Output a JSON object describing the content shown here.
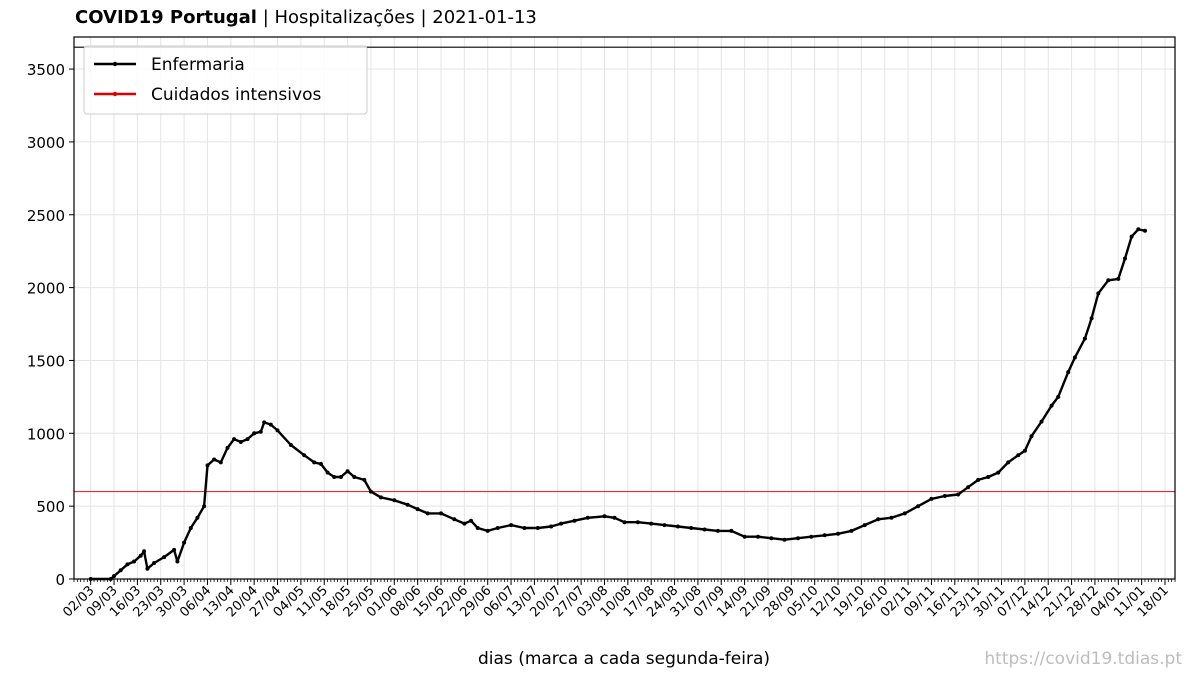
{
  "title": {
    "bold": "COVID19 Portugal",
    "rest": " | Hospitalizações | 2021-01-13"
  },
  "xlabel": "dias (marca a cada segunda-feira)",
  "source": "https://covid19.tdias.pt",
  "chart_data": {
    "type": "line",
    "title": "COVID19 Portugal | Hospitalizações | 2021-01-13",
    "xlabel": "dias (marca a cada segunda-feira)",
    "ylabel": "",
    "ylim": [
      0,
      3720
    ],
    "x_range": [
      "2020-02-26",
      "2021-01-21"
    ],
    "grid": true,
    "legend_position": "top-left",
    "yticks": [
      0,
      500,
      1000,
      1500,
      2000,
      2500,
      3000,
      3500
    ],
    "xtick_labels": [
      "02/03",
      "09/03",
      "16/03",
      "23/03",
      "30/03",
      "06/04",
      "13/04",
      "20/04",
      "27/04",
      "04/05",
      "11/05",
      "18/05",
      "25/05",
      "01/06",
      "08/06",
      "15/06",
      "22/06",
      "29/06",
      "06/07",
      "13/07",
      "20/07",
      "27/07",
      "03/08",
      "10/08",
      "17/08",
      "24/08",
      "31/08",
      "07/09",
      "14/09",
      "21/09",
      "28/09",
      "05/10",
      "12/10",
      "19/10",
      "26/10",
      "02/11",
      "09/11",
      "16/11",
      "23/11",
      "30/11",
      "07/12",
      "14/12",
      "21/12",
      "28/12",
      "04/01",
      "11/01",
      "18/01"
    ],
    "reference_lines": [
      {
        "value": 3650,
        "color": "#000000"
      },
      {
        "value": 600,
        "color": "#e03030"
      }
    ],
    "series": [
      {
        "name": "Enfermaria",
        "color": "#000000",
        "points": [
          [
            "2020-03-02",
            0
          ],
          [
            "2020-03-08",
            0
          ],
          [
            "2020-03-09",
            20
          ],
          [
            "2020-03-11",
            60
          ],
          [
            "2020-03-13",
            100
          ],
          [
            "2020-03-15",
            120
          ],
          [
            "2020-03-17",
            160
          ],
          [
            "2020-03-18",
            190
          ],
          [
            "2020-03-19",
            70
          ],
          [
            "2020-03-21",
            110
          ],
          [
            "2020-03-24",
            150
          ],
          [
            "2020-03-27",
            200
          ],
          [
            "2020-03-28",
            120
          ],
          [
            "2020-03-30",
            250
          ],
          [
            "2020-04-01",
            350
          ],
          [
            "2020-04-03",
            420
          ],
          [
            "2020-04-05",
            500
          ],
          [
            "2020-04-06",
            780
          ],
          [
            "2020-04-08",
            820
          ],
          [
            "2020-04-10",
            800
          ],
          [
            "2020-04-12",
            900
          ],
          [
            "2020-04-14",
            960
          ],
          [
            "2020-04-16",
            940
          ],
          [
            "2020-04-18",
            960
          ],
          [
            "2020-04-20",
            1000
          ],
          [
            "2020-04-22",
            1010
          ],
          [
            "2020-04-23",
            1075
          ],
          [
            "2020-04-25",
            1060
          ],
          [
            "2020-04-27",
            1020
          ],
          [
            "2020-05-01",
            920
          ],
          [
            "2020-05-05",
            850
          ],
          [
            "2020-05-08",
            800
          ],
          [
            "2020-05-10",
            790
          ],
          [
            "2020-05-12",
            730
          ],
          [
            "2020-05-14",
            700
          ],
          [
            "2020-05-16",
            700
          ],
          [
            "2020-05-18",
            740
          ],
          [
            "2020-05-20",
            700
          ],
          [
            "2020-05-23",
            680
          ],
          [
            "2020-05-25",
            600
          ],
          [
            "2020-05-28",
            560
          ],
          [
            "2020-06-01",
            540
          ],
          [
            "2020-06-05",
            510
          ],
          [
            "2020-06-08",
            480
          ],
          [
            "2020-06-11",
            450
          ],
          [
            "2020-06-15",
            450
          ],
          [
            "2020-06-19",
            410
          ],
          [
            "2020-06-22",
            380
          ],
          [
            "2020-06-24",
            400
          ],
          [
            "2020-06-26",
            350
          ],
          [
            "2020-06-29",
            330
          ],
          [
            "2020-07-02",
            350
          ],
          [
            "2020-07-06",
            370
          ],
          [
            "2020-07-10",
            350
          ],
          [
            "2020-07-14",
            350
          ],
          [
            "2020-07-18",
            360
          ],
          [
            "2020-07-21",
            380
          ],
          [
            "2020-07-25",
            400
          ],
          [
            "2020-07-29",
            420
          ],
          [
            "2020-08-03",
            430
          ],
          [
            "2020-08-06",
            420
          ],
          [
            "2020-08-09",
            390
          ],
          [
            "2020-08-13",
            390
          ],
          [
            "2020-08-17",
            380
          ],
          [
            "2020-08-21",
            370
          ],
          [
            "2020-08-25",
            360
          ],
          [
            "2020-08-29",
            350
          ],
          [
            "2020-09-02",
            340
          ],
          [
            "2020-09-06",
            330
          ],
          [
            "2020-09-10",
            330
          ],
          [
            "2020-09-14",
            290
          ],
          [
            "2020-09-18",
            290
          ],
          [
            "2020-09-22",
            280
          ],
          [
            "2020-09-26",
            270
          ],
          [
            "2020-09-30",
            280
          ],
          [
            "2020-10-04",
            290
          ],
          [
            "2020-10-08",
            300
          ],
          [
            "2020-10-12",
            310
          ],
          [
            "2020-10-16",
            330
          ],
          [
            "2020-10-20",
            370
          ],
          [
            "2020-10-24",
            410
          ],
          [
            "2020-10-28",
            420
          ],
          [
            "2020-11-01",
            450
          ],
          [
            "2020-11-05",
            500
          ],
          [
            "2020-11-09",
            550
          ],
          [
            "2020-11-13",
            570
          ],
          [
            "2020-11-17",
            580
          ],
          [
            "2020-11-20",
            630
          ],
          [
            "2020-11-23",
            680
          ],
          [
            "2020-11-26",
            700
          ],
          [
            "2020-11-29",
            730
          ],
          [
            "2020-12-02",
            800
          ],
          [
            "2020-12-05",
            850
          ],
          [
            "2020-12-07",
            880
          ],
          [
            "2020-12-09",
            980
          ],
          [
            "2020-12-12",
            1080
          ],
          [
            "2020-12-15",
            1190
          ],
          [
            "2020-12-17",
            1250
          ],
          [
            "2020-12-20",
            1420
          ],
          [
            "2020-12-22",
            1520
          ],
          [
            "2020-12-25",
            1650
          ],
          [
            "2020-12-27",
            1790
          ],
          [
            "2020-12-29",
            1960
          ],
          [
            "2021-01-01",
            2050
          ],
          [
            "2021-01-04",
            2060
          ],
          [
            "2021-01-06",
            2200
          ],
          [
            "2021-01-08",
            2350
          ],
          [
            "2021-01-10",
            2400
          ],
          [
            "2021-01-12",
            2390
          ]
        ]
      },
      {
        "name": "Cuidados intensivos",
        "color": "#dd0000",
        "points": []
      }
    ]
  }
}
